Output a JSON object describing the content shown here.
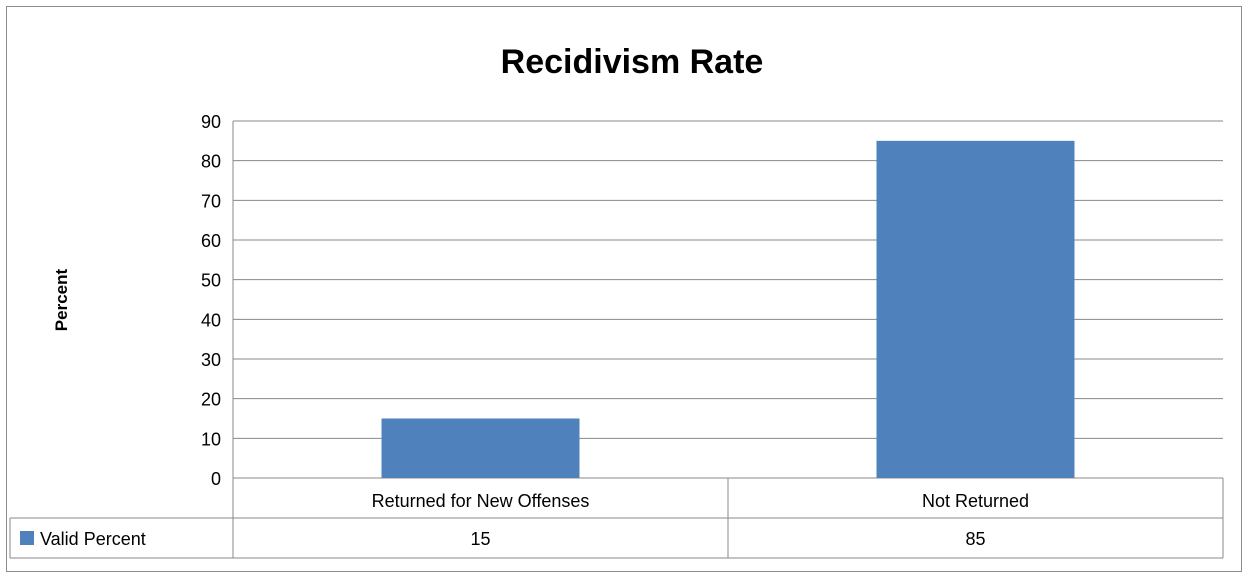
{
  "chart_data": {
    "type": "bar",
    "title": "Recidivism Rate",
    "ylabel": "Percent",
    "xlabel": "",
    "ylim": [
      0,
      90
    ],
    "yticks": [
      0,
      10,
      20,
      30,
      40,
      50,
      60,
      70,
      80,
      90
    ],
    "grid": true,
    "categories": [
      "Returned for New Offenses",
      "Not Returned"
    ],
    "series": [
      {
        "name": "Valid Percent",
        "values": [
          15,
          85
        ],
        "color": "#4f81bd"
      }
    ],
    "data_table": true,
    "legend": "in data table"
  }
}
